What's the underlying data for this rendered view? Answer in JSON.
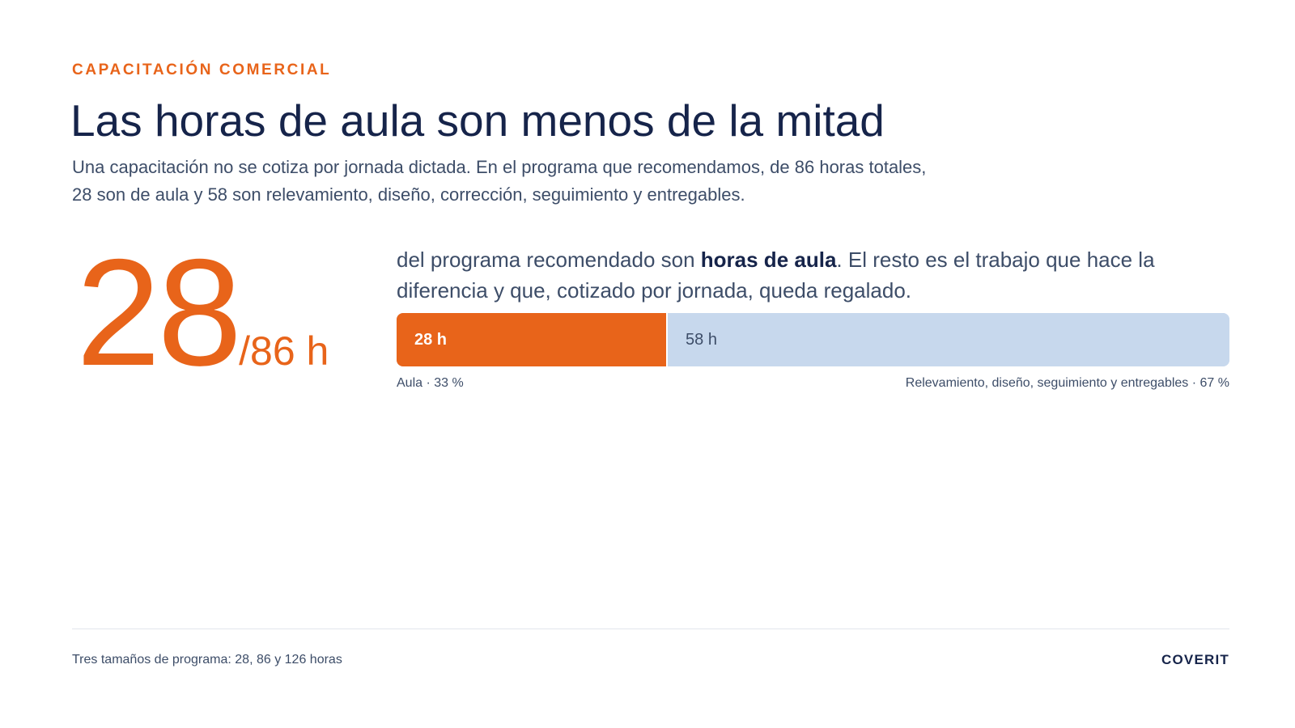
{
  "header": {
    "eyebrow": "CAPACITACIÓN COMERCIAL",
    "title": "Las horas de aula son menos de la mitad",
    "subtitle_line1": "Una capacitación no se cotiza por jornada dictada. En el programa que recomendamos, de 86 horas totales,",
    "subtitle_line2": "28 son de aula y 58 son relevamiento, diseño, corrección, seguimiento y entregables."
  },
  "stat": {
    "value": "28",
    "unit": "/86 h"
  },
  "lead": {
    "before": "del programa recomendado son ",
    "emphasis": "horas de aula",
    "after": ". El resto es el trabajo que hace la diferencia y que, cotizado por jornada, queda regalado."
  },
  "chart_data": {
    "type": "bar",
    "orientation": "horizontal-stacked",
    "total": 86,
    "segments": [
      {
        "value": 28,
        "label": "28 h",
        "caption": "Aula · 33 %",
        "color": "#e8641a"
      },
      {
        "value": 58,
        "label": "58 h",
        "caption": "Relevamiento, diseño, seguimiento y entregables · 67 %",
        "color": "#c7d8ed"
      }
    ]
  },
  "footer": {
    "note": "Tres tamaños de programa: 28, 86 y 126 horas",
    "brand": "COVERIT"
  }
}
